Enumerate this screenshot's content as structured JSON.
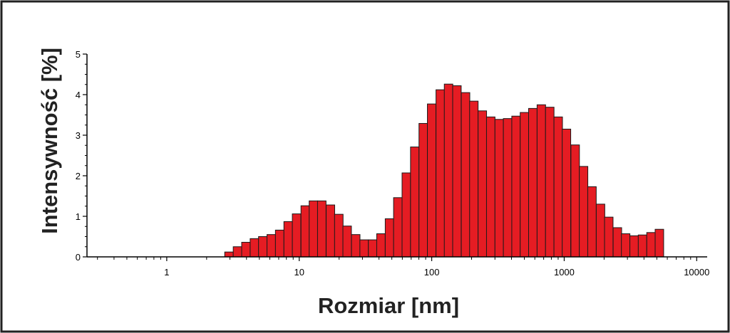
{
  "chart_data": {
    "type": "bar",
    "xscale": "log",
    "xlim": [
      0.25,
      12000
    ],
    "ylim": [
      0,
      5
    ],
    "xlabel": "Rozmiar [nm]",
    "ylabel": "Intensywność [%]",
    "yticks": [
      "0",
      "1",
      "2",
      "3",
      "4",
      "5"
    ],
    "xticks": [
      "1",
      "10",
      "100",
      "1000",
      "10000"
    ],
    "grid": false,
    "colors": {
      "bar": "#e51c23",
      "edge": "#1a1a1a",
      "axis": "#000000"
    },
    "bins": [
      {
        "x": 2.95,
        "y": 0.12
      },
      {
        "x": 3.42,
        "y": 0.25
      },
      {
        "x": 3.96,
        "y": 0.36
      },
      {
        "x": 4.59,
        "y": 0.45
      },
      {
        "x": 5.31,
        "y": 0.5
      },
      {
        "x": 6.15,
        "y": 0.55
      },
      {
        "x": 7.12,
        "y": 0.66
      },
      {
        "x": 8.25,
        "y": 0.87
      },
      {
        "x": 9.55,
        "y": 1.06
      },
      {
        "x": 11.1,
        "y": 1.26
      },
      {
        "x": 12.8,
        "y": 1.38
      },
      {
        "x": 14.8,
        "y": 1.38
      },
      {
        "x": 17.2,
        "y": 1.28
      },
      {
        "x": 19.9,
        "y": 1.05
      },
      {
        "x": 23.0,
        "y": 0.76
      },
      {
        "x": 26.7,
        "y": 0.55
      },
      {
        "x": 30.9,
        "y": 0.42
      },
      {
        "x": 35.8,
        "y": 0.42
      },
      {
        "x": 41.4,
        "y": 0.57
      },
      {
        "x": 48.0,
        "y": 0.94
      },
      {
        "x": 55.5,
        "y": 1.46
      },
      {
        "x": 64.3,
        "y": 2.07
      },
      {
        "x": 74.5,
        "y": 2.71
      },
      {
        "x": 86.3,
        "y": 3.29
      },
      {
        "x": 99.9,
        "y": 3.77
      },
      {
        "x": 116,
        "y": 4.12
      },
      {
        "x": 134,
        "y": 4.26
      },
      {
        "x": 155,
        "y": 4.22
      },
      {
        "x": 180,
        "y": 4.05
      },
      {
        "x": 208,
        "y": 3.84
      },
      {
        "x": 241,
        "y": 3.6
      },
      {
        "x": 279,
        "y": 3.45
      },
      {
        "x": 323,
        "y": 3.39
      },
      {
        "x": 374,
        "y": 3.41
      },
      {
        "x": 433,
        "y": 3.47
      },
      {
        "x": 501,
        "y": 3.56
      },
      {
        "x": 580,
        "y": 3.66
      },
      {
        "x": 672,
        "y": 3.75
      },
      {
        "x": 778,
        "y": 3.69
      },
      {
        "x": 901,
        "y": 3.45
      },
      {
        "x": 1040,
        "y": 3.15
      },
      {
        "x": 1210,
        "y": 2.76
      },
      {
        "x": 1400,
        "y": 2.23
      },
      {
        "x": 1620,
        "y": 1.73
      },
      {
        "x": 1880,
        "y": 1.3
      },
      {
        "x": 2170,
        "y": 0.98
      },
      {
        "x": 2520,
        "y": 0.72
      },
      {
        "x": 2910,
        "y": 0.57
      },
      {
        "x": 3370,
        "y": 0.52
      },
      {
        "x": 3900,
        "y": 0.54
      },
      {
        "x": 4520,
        "y": 0.6
      },
      {
        "x": 5230,
        "y": 0.68
      }
    ]
  }
}
